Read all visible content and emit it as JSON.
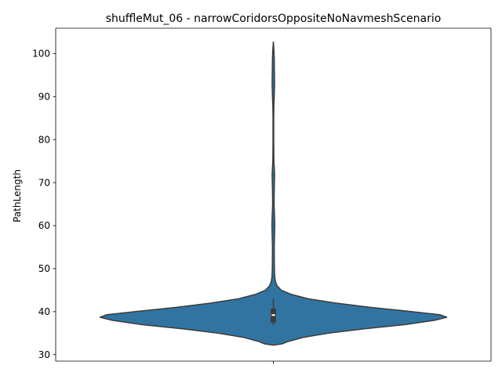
{
  "chart_data": {
    "type": "violin",
    "title": "shuffleMut_06 - narrowCoridorsOppositeNoNavmeshScenario",
    "xlabel": "",
    "ylabel": "PathLength",
    "ylim": [
      28.5,
      105.9
    ],
    "yticks": [
      30,
      40,
      50,
      60,
      70,
      80,
      90,
      100
    ],
    "grid": false,
    "colors": {
      "violin_fill": "#3274a1",
      "violin_edge": "#3b3b3b",
      "box": "#3b3b3b",
      "median": "#ffffff"
    },
    "violin_profile": [
      {
        "y": 32.2,
        "w": 0.0
      },
      {
        "y": 32.5,
        "w": 0.05
      },
      {
        "y": 33.0,
        "w": 0.08
      },
      {
        "y": 34.0,
        "w": 0.17
      },
      {
        "y": 35.0,
        "w": 0.32
      },
      {
        "y": 36.0,
        "w": 0.52
      },
      {
        "y": 37.0,
        "w": 0.76
      },
      {
        "y": 38.0,
        "w": 0.93
      },
      {
        "y": 38.7,
        "w": 1.0
      },
      {
        "y": 39.3,
        "w": 0.96
      },
      {
        "y": 40.0,
        "w": 0.8
      },
      {
        "y": 41.0,
        "w": 0.56
      },
      {
        "y": 42.0,
        "w": 0.36
      },
      {
        "y": 43.0,
        "w": 0.2
      },
      {
        "y": 44.0,
        "w": 0.105
      },
      {
        "y": 45.0,
        "w": 0.045
      },
      {
        "y": 46.0,
        "w": 0.022
      },
      {
        "y": 47.0,
        "w": 0.012
      },
      {
        "y": 48.0,
        "w": 0.008
      },
      {
        "y": 50.0,
        "w": 0.006
      },
      {
        "y": 55.0,
        "w": 0.005
      },
      {
        "y": 58.0,
        "w": 0.007
      },
      {
        "y": 60.0,
        "w": 0.008
      },
      {
        "y": 62.0,
        "w": 0.007
      },
      {
        "y": 65.0,
        "w": 0.004
      },
      {
        "y": 68.0,
        "w": 0.005
      },
      {
        "y": 70.0,
        "w": 0.006
      },
      {
        "y": 72.0,
        "w": 0.007
      },
      {
        "y": 75.0,
        "w": 0.003
      },
      {
        "y": 80.0,
        "w": 0.002
      },
      {
        "y": 85.0,
        "w": 0.002
      },
      {
        "y": 88.0,
        "w": 0.003
      },
      {
        "y": 90.0,
        "w": 0.005
      },
      {
        "y": 93.0,
        "w": 0.007
      },
      {
        "y": 96.0,
        "w": 0.006
      },
      {
        "y": 99.0,
        "w": 0.005
      },
      {
        "y": 101.0,
        "w": 0.003
      },
      {
        "y": 102.7,
        "w": 0.0
      }
    ],
    "box": {
      "q1": 37.5,
      "median": 39.2,
      "q3": 40.7,
      "whisker_low": 36.9,
      "whisker_high": 43.0
    }
  }
}
